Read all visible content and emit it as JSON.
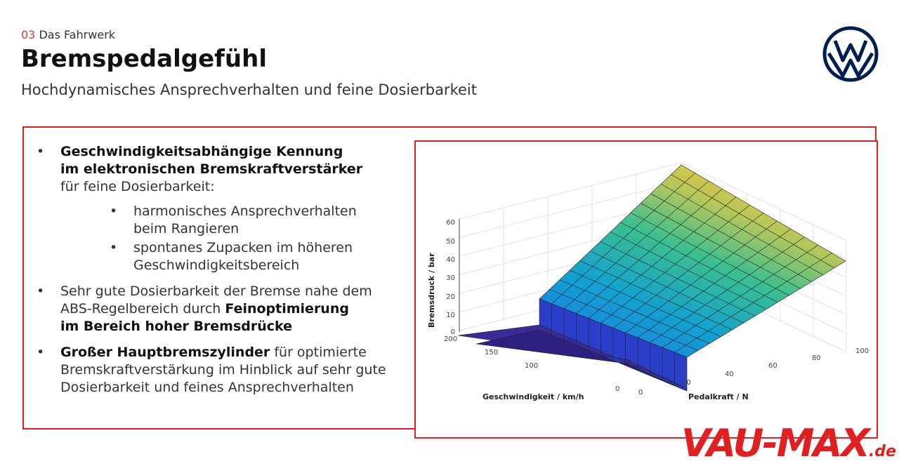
{
  "header": {
    "section_num": "03",
    "section_name": "Das Fahrwerk",
    "title": "Bremspedalgefühl",
    "subtitle": "Hochdynamisches Ansprechverhalten und feine Dosierbarkeit"
  },
  "colors": {
    "accent_red": "#e02020",
    "vw_blue": "#001e50"
  },
  "bullets": {
    "b1_bold1": "Geschwindigkeitsabhängige Kennung",
    "b1_bold2": "im elektronischen Bremskraftverstärker",
    "b1_rest": "für feine Dosierbarkeit:",
    "s1_l1": "harmonisches Ansprechverhalten",
    "s1_l2": "beim Rangieren",
    "s2_l1": "spontanes Zupacken im höheren",
    "s2_l2": "Geschwindigkeitsbereich",
    "b2_l1": "Sehr gute Dosierbarkeit der Bremse nahe dem",
    "b2_l2a": "ABS-Regelbereich durch ",
    "b2_l2b": "Feinoptimierung",
    "b2_l3": "im Bereich hoher Bremsdrücke",
    "b3_bold": "Großer Hauptbremszylinder",
    "b3_l1": " für optimierte",
    "b3_l2": "Bremskraftverstärkung im Hinblick auf sehr gute",
    "b3_l3": "Dosierbarkeit und feines Ansprechverhalten"
  },
  "watermark": {
    "text": "VAU-MAX",
    "tld": ".de"
  },
  "chart_data": {
    "type": "surface",
    "zlabel": "Bremsdruck / bar",
    "xlabel": "Geschwindigkeit / km/h",
    "ylabel": "Pedalkraft / N",
    "z_ticks": [
      "0",
      "10",
      "20",
      "30",
      "40",
      "50",
      "60"
    ],
    "x_ticks": [
      "200",
      "150",
      "100",
      "0"
    ],
    "y_ticks": [
      "0",
      "20",
      "40",
      "60",
      "80",
      "100"
    ],
    "zlim": [
      0,
      60
    ],
    "xlim": [
      0,
      200
    ],
    "ylim": [
      0,
      100
    ],
    "grid": true,
    "colormap": "parula",
    "description_points": [
      {
        "pedal": 0,
        "pressure": 0
      },
      {
        "pedal": 20,
        "pressure": 0
      },
      {
        "pedal": 20,
        "pressure": 20
      },
      {
        "pedal": 100,
        "pressure": 60
      }
    ]
  }
}
